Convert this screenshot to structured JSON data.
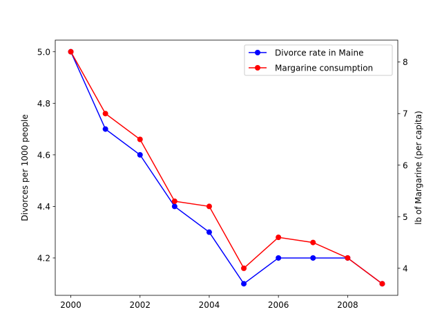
{
  "chart_data": {
    "type": "line",
    "title": "",
    "xlabel": "",
    "ylabel": "Divorces per 1000 people",
    "y2label": "lb of Margarine (per capita)",
    "x": [
      2000,
      2001,
      2002,
      2003,
      2004,
      2005,
      2006,
      2007,
      2008,
      2009
    ],
    "xticks": [
      2000,
      2002,
      2004,
      2006,
      2008
    ],
    "xlim": [
      1999.55,
      2009.45
    ],
    "ylim": [
      4.055,
      5.045
    ],
    "yticks": [
      4.2,
      4.4,
      4.6,
      4.8,
      5.0
    ],
    "y2lim": [
      3.475,
      8.425
    ],
    "y2ticks": [
      4,
      5,
      6,
      7,
      8
    ],
    "grid": false,
    "legend_position": "top-right",
    "series": [
      {
        "name": "Divorce rate in Maine",
        "axis": "left",
        "color": "#0000ff",
        "values": [
          5.0,
          4.7,
          4.6,
          4.4,
          4.3,
          4.1,
          4.2,
          4.2,
          4.2,
          4.1
        ]
      },
      {
        "name": "Margarine consumption",
        "axis": "right",
        "color": "#ff0000",
        "values": [
          8.2,
          7.0,
          6.5,
          5.3,
          5.2,
          4.0,
          4.6,
          4.5,
          4.2,
          3.7
        ]
      }
    ]
  }
}
